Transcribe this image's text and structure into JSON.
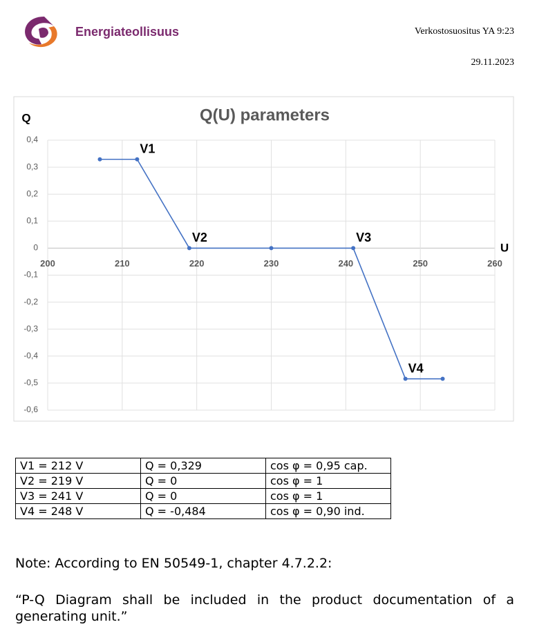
{
  "header": {
    "logo_text": "Energiateollisuus",
    "doc_id": "Verkostosuositus YA 9:23",
    "date": "29.11.2023"
  },
  "chart_data": {
    "type": "line",
    "title": "Q(U) parameters",
    "y_label": "Q",
    "x_label": "U",
    "x": [
      207,
      212,
      219,
      230,
      241,
      248,
      253
    ],
    "values": [
      0.329,
      0.329,
      0,
      0,
      0,
      -0.484,
      -0.484
    ],
    "color": "#4472c4",
    "xlim": [
      200,
      260
    ],
    "xticks": [
      200,
      210,
      220,
      230,
      240,
      250,
      260
    ],
    "ylim": [
      -0.6,
      0.4
    ],
    "yticks": [
      {
        "value": 0.4,
        "label": "0,4"
      },
      {
        "value": 0.3,
        "label": "0,3"
      },
      {
        "value": 0.2,
        "label": "0,2"
      },
      {
        "value": 0.1,
        "label": "0,1"
      },
      0,
      {
        "value": -0.1,
        "label": "-0,1"
      },
      {
        "value": -0.2,
        "label": "-0,2"
      },
      {
        "value": -0.3,
        "label": "-0,3"
      },
      {
        "value": -0.4,
        "label": "-0,4"
      },
      {
        "value": -0.5,
        "label": "-0,5"
      },
      {
        "value": -0.6,
        "label": "-0,6"
      }
    ],
    "grid": true,
    "annotations": [
      {
        "text": "V1",
        "x": 212,
        "y": 0.329
      },
      {
        "text": "V2",
        "x": 219,
        "y": 0
      },
      {
        "text": "V3",
        "x": 241,
        "y": 0
      },
      {
        "text": "V4",
        "x": 248,
        "y": -0.484
      }
    ]
  },
  "table": {
    "rows": [
      [
        "V1 = 212 V",
        "Q = 0,329",
        "cos φ = 0,95 cap."
      ],
      [
        "V2 = 219 V",
        "Q = 0",
        "cos φ = 1"
      ],
      [
        "V3 = 241 V",
        "Q = 0",
        "cos φ = 1"
      ],
      [
        "V4 = 248 V",
        "Q = -0,484",
        "cos φ = 0,90 ind."
      ]
    ]
  },
  "note": {
    "lead": "Note: According to EN 50549-1, chapter 4.7.2.2:",
    "quote": "“P-Q Diagram shall be included in the product documentation of a generating unit.”"
  }
}
